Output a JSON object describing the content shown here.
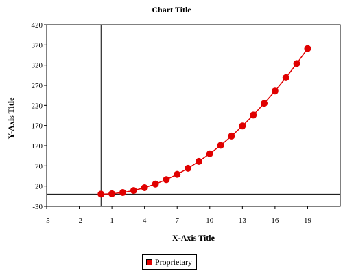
{
  "chart_data": {
    "type": "scatter",
    "title": "Chart Title",
    "xlabel": "X-Axis Title",
    "ylabel": "Y-Axis Title",
    "xlim": [
      -5,
      22
    ],
    "ylim": [
      -30,
      420
    ],
    "xticks": [
      -5,
      -2,
      1,
      4,
      7,
      10,
      13,
      16,
      19
    ],
    "yticks": [
      -30,
      20,
      70,
      120,
      170,
      220,
      270,
      320,
      370,
      420
    ],
    "grid": false,
    "legend_position": "bottom",
    "series": [
      {
        "name": "Proprietary",
        "color": "#e00000",
        "marker": "circle",
        "line": true,
        "x": [
          0,
          1,
          2,
          3,
          4,
          5,
          6,
          7,
          8,
          9,
          10,
          11,
          12,
          13,
          14,
          15,
          16,
          17,
          18,
          19
        ],
        "y": [
          0,
          1,
          4,
          9,
          16,
          25,
          36,
          49,
          64,
          81,
          100,
          121,
          144,
          169,
          196,
          225,
          256,
          289,
          324,
          361
        ]
      }
    ]
  }
}
